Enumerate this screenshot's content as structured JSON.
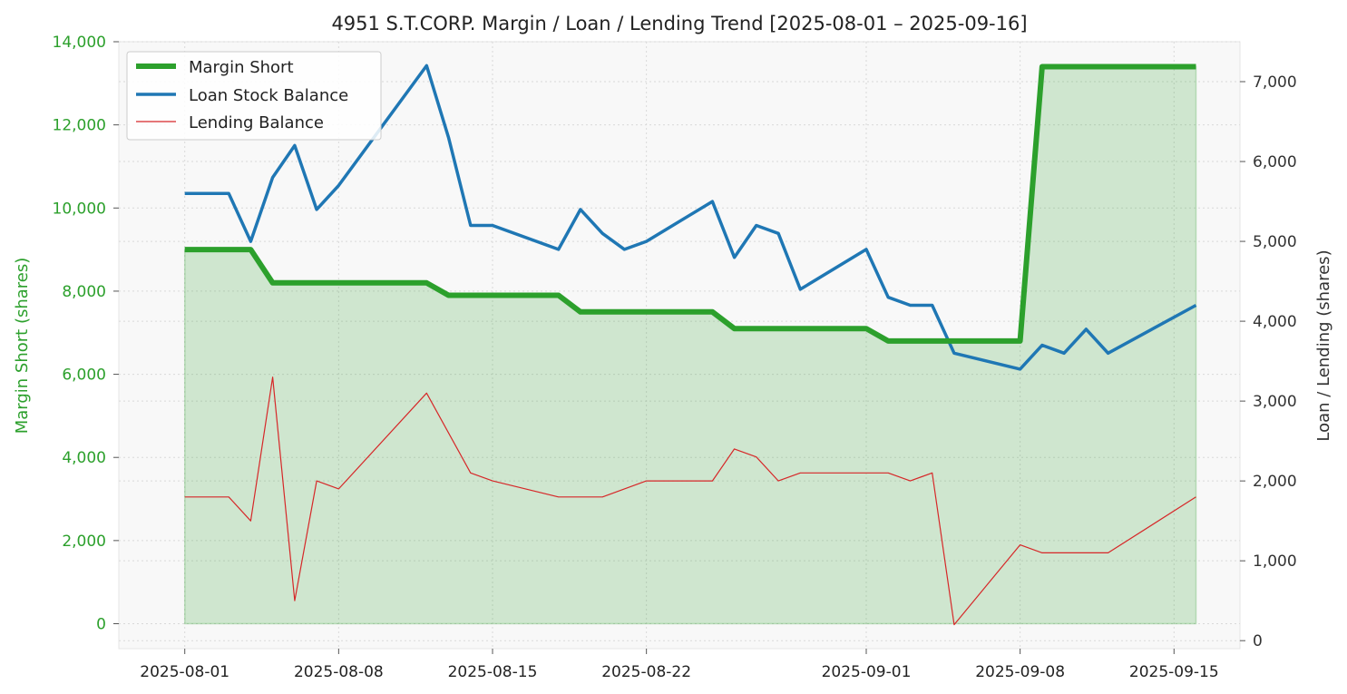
{
  "chart_data": {
    "type": "line",
    "title": "4951 S.T.CORP. Margin / Loan / Lending Trend [2025-08-01 – 2025-09-16]",
    "x_tick_labels": [
      "2025-08-01",
      "2025-08-08",
      "2025-08-15",
      "2025-08-22",
      "2025-09-01",
      "2025-09-08",
      "2025-09-15"
    ],
    "x_tick_dates": [
      "2025-08-01",
      "2025-08-08",
      "2025-08-15",
      "2025-08-22",
      "2025-09-01",
      "2025-09-08",
      "2025-09-15"
    ],
    "xlim": [
      "2025-07-29",
      "2025-09-18"
    ],
    "y_left": {
      "label": "Margin Short (shares)",
      "ylim": [
        -600,
        14000
      ],
      "ticks": [
        0,
        2000,
        4000,
        6000,
        8000,
        10000,
        12000,
        14000
      ],
      "tick_labels": [
        "0",
        "2,000",
        "4,000",
        "6,000",
        "8,000",
        "10,000",
        "12,000",
        "14,000"
      ],
      "color": "#2ca02c"
    },
    "y_right": {
      "label": "Loan / Lending (shares)",
      "ylim": [
        -100,
        7500
      ],
      "ticks": [
        0,
        1000,
        2000,
        3000,
        4000,
        5000,
        6000,
        7000
      ],
      "tick_labels": [
        "0",
        "1,000",
        "2,000",
        "3,000",
        "4,000",
        "5,000",
        "6,000",
        "7,000"
      ],
      "color": "#333333"
    },
    "grid": true,
    "legend_position": "top-left",
    "series": [
      {
        "name": "Margin Short",
        "axis": "left",
        "color": "#2ca02c",
        "fill": true,
        "points": [
          [
            "2025-08-01",
            9000
          ],
          [
            "2025-08-02",
            9000
          ],
          [
            "2025-08-03",
            9000
          ],
          [
            "2025-08-04",
            9000
          ],
          [
            "2025-08-05",
            8200
          ],
          [
            "2025-08-06",
            8200
          ],
          [
            "2025-08-07",
            8200
          ],
          [
            "2025-08-08",
            8200
          ],
          [
            "2025-08-12",
            8200
          ],
          [
            "2025-08-13",
            7900
          ],
          [
            "2025-08-14",
            7900
          ],
          [
            "2025-08-15",
            7900
          ],
          [
            "2025-08-18",
            7900
          ],
          [
            "2025-08-19",
            7500
          ],
          [
            "2025-08-20",
            7500
          ],
          [
            "2025-08-21",
            7500
          ],
          [
            "2025-08-22",
            7500
          ],
          [
            "2025-08-25",
            7500
          ],
          [
            "2025-08-26",
            7100
          ],
          [
            "2025-08-27",
            7100
          ],
          [
            "2025-08-28",
            7100
          ],
          [
            "2025-08-29",
            7100
          ],
          [
            "2025-09-01",
            7100
          ],
          [
            "2025-09-02",
            6800
          ],
          [
            "2025-09-03",
            6800
          ],
          [
            "2025-09-04",
            6800
          ],
          [
            "2025-09-05",
            6800
          ],
          [
            "2025-09-08",
            6800
          ],
          [
            "2025-09-09",
            13400
          ],
          [
            "2025-09-10",
            13400
          ],
          [
            "2025-09-11",
            13400
          ],
          [
            "2025-09-12",
            13400
          ],
          [
            "2025-09-16",
            13400
          ]
        ]
      },
      {
        "name": "Loan Stock Balance",
        "axis": "right",
        "color": "#1f77b4",
        "points": [
          [
            "2025-08-01",
            5600
          ],
          [
            "2025-08-02",
            5600
          ],
          [
            "2025-08-03",
            5600
          ],
          [
            "2025-08-04",
            5000
          ],
          [
            "2025-08-05",
            5800
          ],
          [
            "2025-08-06",
            6200
          ],
          [
            "2025-08-07",
            5400
          ],
          [
            "2025-08-08",
            5700
          ],
          [
            "2025-08-12",
            7200
          ],
          [
            "2025-08-13",
            6300
          ],
          [
            "2025-08-14",
            5200
          ],
          [
            "2025-08-15",
            5200
          ],
          [
            "2025-08-18",
            4900
          ],
          [
            "2025-08-19",
            5400
          ],
          [
            "2025-08-20",
            5100
          ],
          [
            "2025-08-21",
            4900
          ],
          [
            "2025-08-22",
            5000
          ],
          [
            "2025-08-25",
            5500
          ],
          [
            "2025-08-26",
            4800
          ],
          [
            "2025-08-27",
            5200
          ],
          [
            "2025-08-28",
            5100
          ],
          [
            "2025-08-29",
            4400
          ],
          [
            "2025-09-01",
            4900
          ],
          [
            "2025-09-02",
            4300
          ],
          [
            "2025-09-03",
            4200
          ],
          [
            "2025-09-04",
            4200
          ],
          [
            "2025-09-05",
            3600
          ],
          [
            "2025-09-08",
            3400
          ],
          [
            "2025-09-09",
            3700
          ],
          [
            "2025-09-10",
            3600
          ],
          [
            "2025-09-11",
            3900
          ],
          [
            "2025-09-12",
            3600
          ],
          [
            "2025-09-16",
            4200
          ]
        ]
      },
      {
        "name": "Lending Balance",
        "axis": "right",
        "color": "#d62728",
        "points": [
          [
            "2025-08-01",
            1800
          ],
          [
            "2025-08-02",
            1800
          ],
          [
            "2025-08-03",
            1800
          ],
          [
            "2025-08-04",
            1500
          ],
          [
            "2025-08-05",
            3300
          ],
          [
            "2025-08-06",
            500
          ],
          [
            "2025-08-07",
            2000
          ],
          [
            "2025-08-08",
            1900
          ],
          [
            "2025-08-12",
            3100
          ],
          [
            "2025-08-14",
            2100
          ],
          [
            "2025-08-15",
            2000
          ],
          [
            "2025-08-18",
            1800
          ],
          [
            "2025-08-19",
            1800
          ],
          [
            "2025-08-20",
            1800
          ],
          [
            "2025-08-22",
            2000
          ],
          [
            "2025-08-25",
            2000
          ],
          [
            "2025-08-26",
            2400
          ],
          [
            "2025-08-27",
            2300
          ],
          [
            "2025-08-28",
            2000
          ],
          [
            "2025-08-29",
            2100
          ],
          [
            "2025-09-01",
            2100
          ],
          [
            "2025-09-02",
            2100
          ],
          [
            "2025-09-03",
            2000
          ],
          [
            "2025-09-04",
            2100
          ],
          [
            "2025-09-05",
            200
          ],
          [
            "2025-09-08",
            1200
          ],
          [
            "2025-09-09",
            1100
          ],
          [
            "2025-09-10",
            1100
          ],
          [
            "2025-09-11",
            1100
          ],
          [
            "2025-09-12",
            1100
          ],
          [
            "2025-09-16",
            1800
          ]
        ]
      }
    ]
  }
}
